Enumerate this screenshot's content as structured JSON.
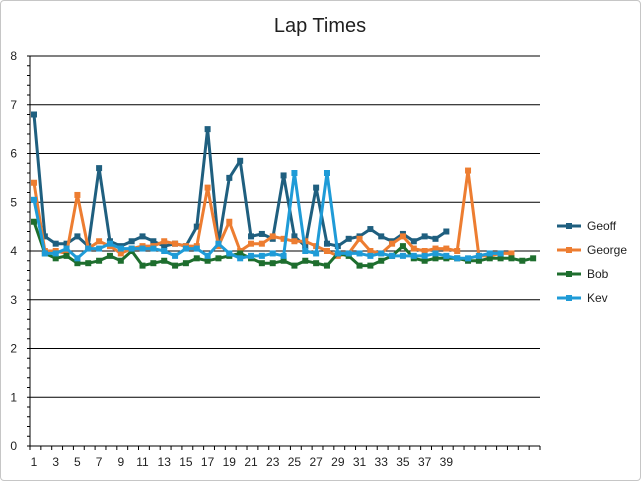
{
  "chart_data": {
    "type": "line",
    "title": "Lap Times",
    "xlabel": "",
    "ylabel": "",
    "ylim": [
      0,
      8
    ],
    "y_ticks": [
      "0",
      "1",
      "2",
      "3",
      "4",
      "5",
      "6",
      "7",
      "8"
    ],
    "x_tick_labels": [
      "1",
      "3",
      "5",
      "7",
      "9",
      "11",
      "13",
      "15",
      "17",
      "19",
      "21",
      "23",
      "25",
      "27",
      "29",
      "31",
      "33",
      "35",
      "37",
      "39"
    ],
    "grid": "horizontal",
    "legend_position": "right",
    "markers": "square",
    "series": [
      {
        "name": "Geoff",
        "color": "#1f5f7f",
        "values": [
          6.8,
          4.3,
          4.15,
          4.15,
          4.3,
          4.1,
          5.7,
          4.2,
          4.1,
          4.2,
          4.3,
          4.2,
          4.1,
          4.15,
          4.1,
          4.5,
          6.5,
          4.15,
          5.5,
          5.85,
          4.3,
          4.35,
          4.25,
          5.55,
          4.3,
          4.1,
          5.3,
          4.15,
          4.1,
          4.25,
          4.3,
          4.45,
          4.3,
          4.2,
          4.35,
          4.2,
          4.3,
          4.25,
          4.4
        ]
      },
      {
        "name": "George",
        "color": "#ed7d31",
        "values": [
          5.4,
          4.0,
          4.0,
          3.95,
          5.15,
          4.05,
          4.2,
          4.1,
          3.95,
          4.05,
          4.1,
          4.1,
          4.2,
          4.15,
          4.1,
          4.1,
          5.3,
          4.1,
          4.6,
          4.0,
          4.15,
          4.15,
          4.3,
          4.25,
          4.2,
          4.2,
          4.1,
          4.0,
          3.9,
          3.95,
          4.25,
          4.0,
          3.95,
          4.15,
          4.3,
          4.05,
          4.0,
          4.05,
          4.05,
          4.0,
          5.65,
          3.9,
          3.9,
          3.95,
          3.95
        ]
      },
      {
        "name": "Bob",
        "color": "#1e6e2e",
        "values": [
          4.6,
          3.95,
          3.85,
          3.9,
          3.75,
          3.75,
          3.8,
          3.9,
          3.8,
          4.0,
          3.7,
          3.75,
          3.8,
          3.7,
          3.75,
          3.85,
          3.8,
          3.85,
          3.9,
          3.95,
          3.85,
          3.75,
          3.75,
          3.8,
          3.7,
          3.8,
          3.75,
          3.7,
          3.95,
          3.9,
          3.7,
          3.7,
          3.8,
          3.9,
          4.1,
          3.85,
          3.8,
          3.85,
          3.85,
          3.85,
          3.8,
          3.8,
          3.85,
          3.85,
          3.85,
          3.8,
          3.85
        ]
      },
      {
        "name": "Kev",
        "color": "#1f9bd7",
        "values": [
          5.05,
          3.95,
          3.95,
          4.05,
          3.85,
          4.05,
          4.05,
          4.15,
          4.05,
          4.05,
          4.05,
          4.05,
          4.0,
          3.9,
          4.05,
          4.05,
          3.9,
          4.15,
          3.95,
          3.85,
          3.9,
          3.9,
          3.95,
          3.9,
          5.6,
          4.0,
          3.95,
          5.6,
          3.95,
          3.95,
          3.95,
          3.9,
          3.95,
          3.9,
          3.9,
          3.9,
          3.9,
          3.95,
          3.9,
          3.85,
          3.85,
          3.9,
          3.95,
          3.95
        ]
      }
    ]
  }
}
